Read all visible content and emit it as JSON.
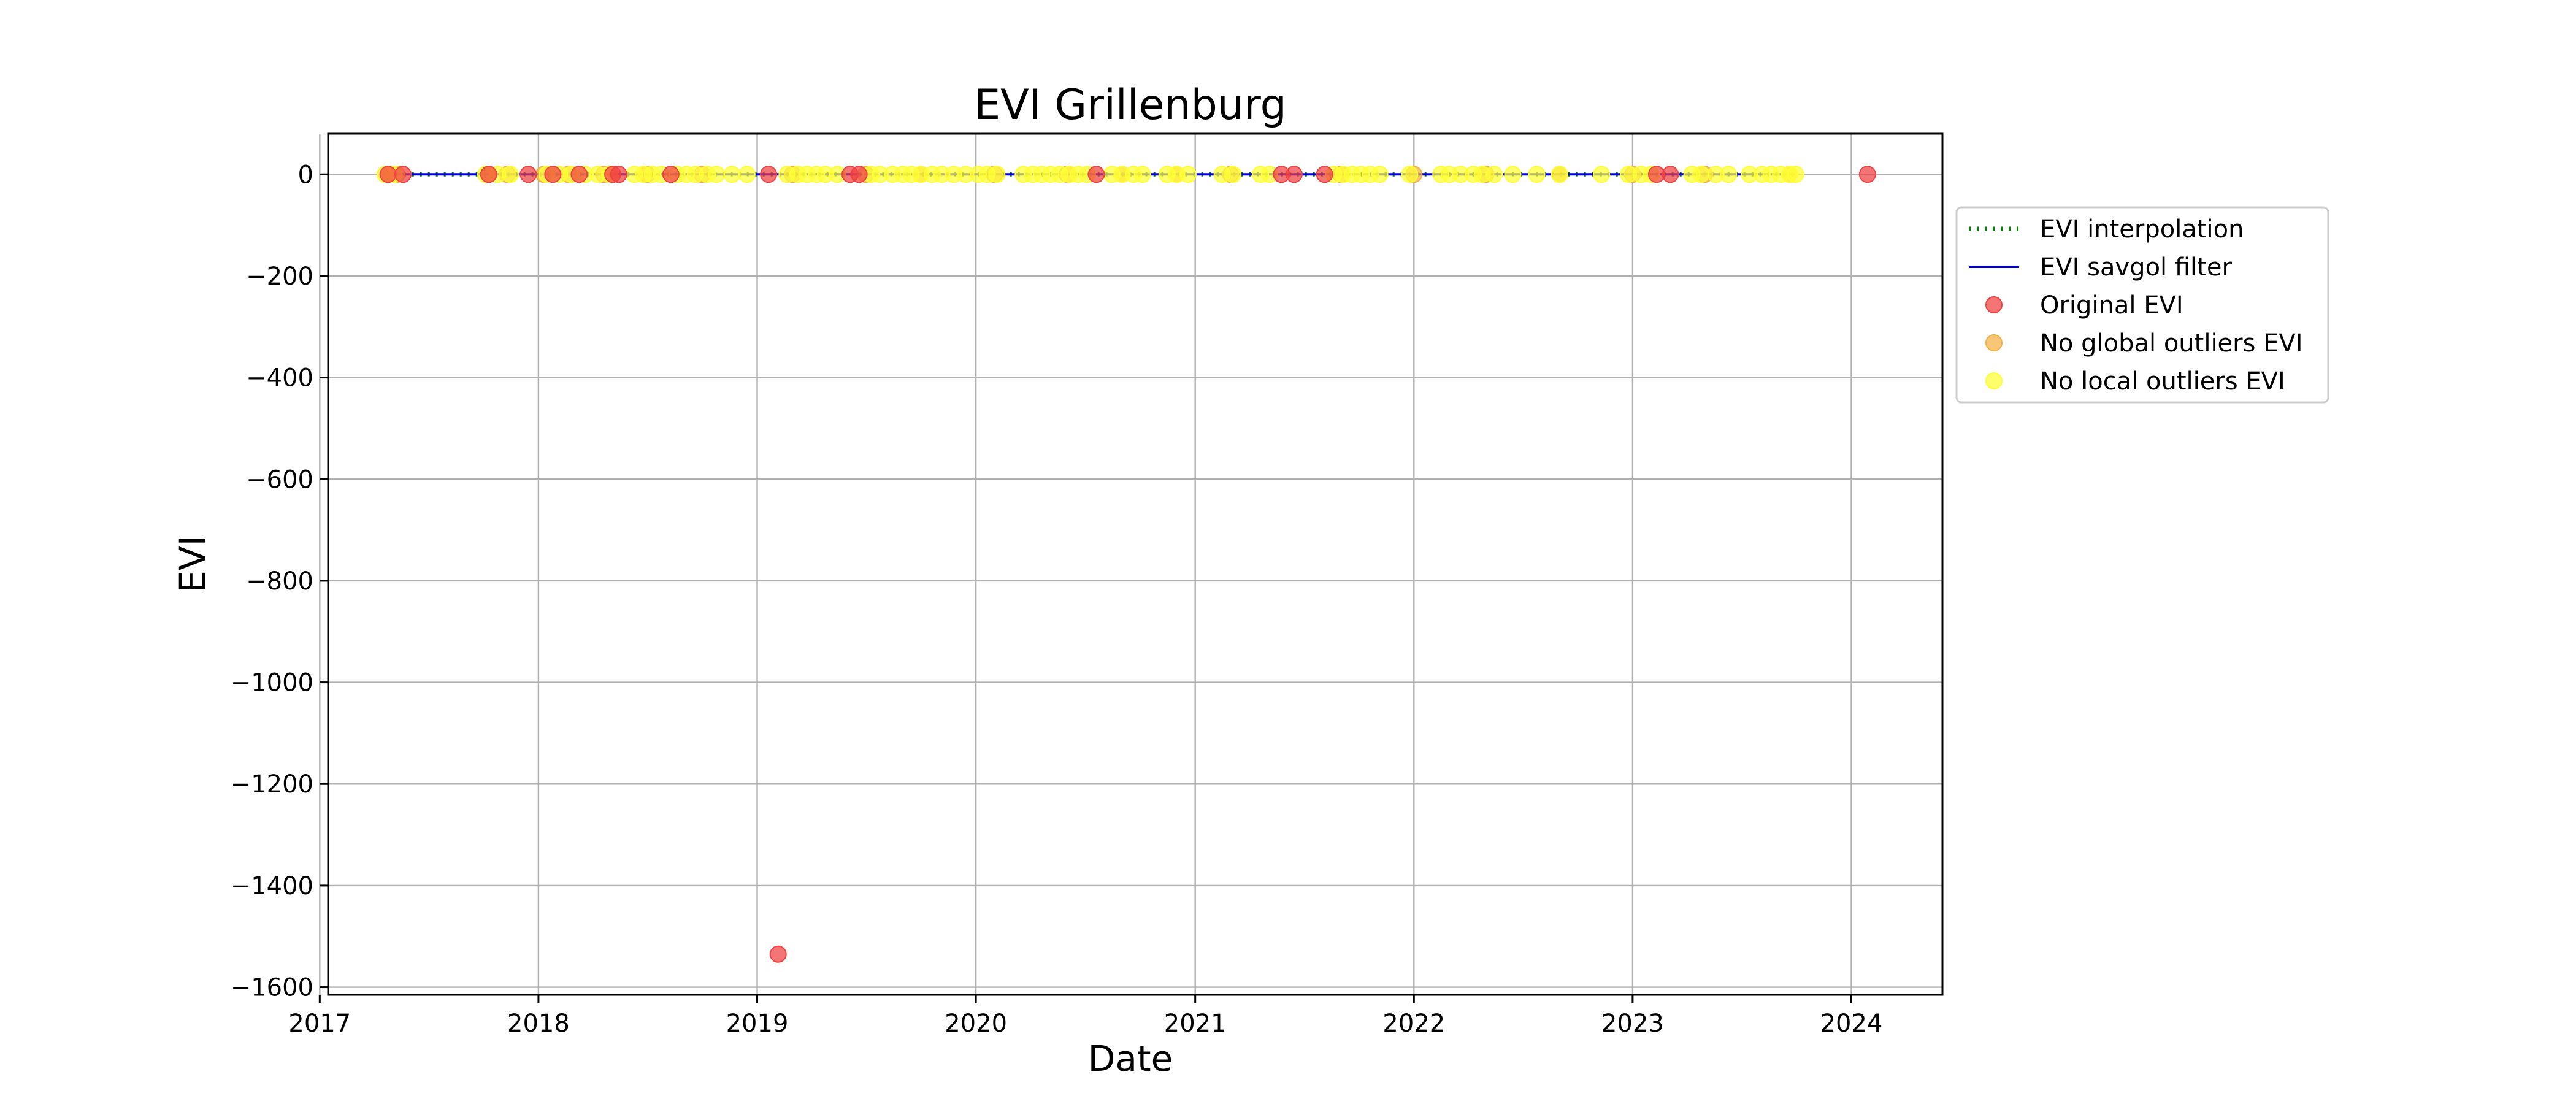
{
  "chart_data": {
    "type": "scatter",
    "title": "EVI Grillenburg",
    "xlabel": "Date",
    "ylabel": "EVI",
    "xlim": [
      "2017-01-15",
      "2024-06-01"
    ],
    "ylim": [
      -1615,
      80
    ],
    "x_ticks": [
      "2017",
      "2018",
      "2019",
      "2020",
      "2021",
      "2022",
      "2023",
      "2024"
    ],
    "y_ticks": [
      0,
      -200,
      -400,
      -600,
      -800,
      -1000,
      -1200,
      -1400,
      -1600
    ],
    "y_tick_labels": [
      "0",
      "−200",
      "−400",
      "−600",
      "−800",
      "−1000",
      "−1200",
      "−1400",
      "−1600"
    ],
    "grid": true,
    "legend_position": "outside-right",
    "series": [
      {
        "name": "EVI interpolation",
        "kind": "line",
        "style": "dotted",
        "color": "#008000",
        "x": [
          "2017-04-25",
          "2023-09-28"
        ],
        "y": [
          0,
          0
        ]
      },
      {
        "name": "EVI savgol filter",
        "kind": "line",
        "style": "solid",
        "color": "#0000cc",
        "x": [
          "2017-04-25",
          "2023-09-28"
        ],
        "y": [
          0,
          0
        ]
      },
      {
        "name": "Original EVI",
        "kind": "scatter",
        "color": "#f04040",
        "x": [
          "2017-04-25",
          "2017-05-20",
          "2017-10-10",
          "2017-12-15",
          "2018-01-25",
          "2018-03-10",
          "2018-05-05",
          "2018-05-15",
          "2018-08-10",
          "2019-01-20",
          "2019-02-05",
          "2019-06-05",
          "2019-06-20",
          "2020-07-20",
          "2021-05-25",
          "2021-06-15",
          "2021-08-05",
          "2023-02-10",
          "2023-03-05",
          "2024-01-28"
        ],
        "y": [
          0,
          0,
          0,
          0,
          0,
          0,
          0,
          0,
          0,
          0,
          -1535,
          0,
          0,
          0,
          0,
          0,
          0,
          0,
          0,
          0
        ]
      },
      {
        "name": "No global outliers EVI",
        "kind": "scatter",
        "color": "#f5b042",
        "x": [
          "2017-04-25",
          "2017-05-10",
          "2017-10-10",
          "2017-11-10",
          "2018-01-10",
          "2018-02-20",
          "2018-04-20",
          "2018-07-01",
          "2018-10-01",
          "2019-03-01",
          "2019-07-01",
          "2019-10-01",
          "2020-02-01",
          "2020-06-01",
          "2020-09-01",
          "2020-12-01",
          "2021-03-01",
          "2021-09-01",
          "2022-01-01",
          "2022-05-01",
          "2022-09-01",
          "2023-01-01",
          "2023-05-01",
          "2023-09-20"
        ],
        "y": [
          0,
          0,
          0,
          0,
          0,
          0,
          0,
          0,
          0,
          0,
          0,
          0,
          0,
          0,
          0,
          0,
          0,
          0,
          0,
          0,
          0,
          0,
          0,
          0
        ]
      },
      {
        "name": "No local outliers EVI",
        "kind": "scatter",
        "color": "#ffff33",
        "x": [
          "2017-04-20",
          "2017-05-05",
          "2017-10-05",
          "2017-10-25",
          "2017-11-15",
          "2018-01-15",
          "2018-02-05",
          "2018-02-25",
          "2018-03-20",
          "2018-04-10",
          "2018-04-30",
          "2018-06-10",
          "2018-06-25",
          "2018-07-10",
          "2018-07-25",
          "2018-08-20",
          "2018-09-05",
          "2018-09-20",
          "2018-10-10",
          "2018-10-25",
          "2018-11-20",
          "2018-12-15",
          "2019-02-20",
          "2019-03-10",
          "2019-03-25",
          "2019-04-10",
          "2019-04-25",
          "2019-05-15",
          "2019-07-10",
          "2019-07-25",
          "2019-08-15",
          "2019-09-01",
          "2019-09-15",
          "2019-10-01",
          "2019-10-20",
          "2019-11-05",
          "2019-11-25",
          "2019-12-15",
          "2020-01-05",
          "2020-01-20",
          "2020-02-05",
          "2020-03-20",
          "2020-04-05",
          "2020-04-20",
          "2020-05-05",
          "2020-05-20",
          "2020-06-05",
          "2020-06-20",
          "2020-07-05",
          "2020-08-15",
          "2020-09-01",
          "2020-09-20",
          "2020-10-05",
          "2020-11-15",
          "2020-12-01",
          "2020-12-20",
          "2021-02-15",
          "2021-03-05",
          "2021-04-20",
          "2021-05-05",
          "2021-08-20",
          "2021-09-05",
          "2021-09-20",
          "2021-10-05",
          "2021-10-20",
          "2021-11-05",
          "2021-12-25",
          "2022-02-15",
          "2022-03-01",
          "2022-03-20",
          "2022-04-10",
          "2022-04-25",
          "2022-05-15",
          "2022-06-15",
          "2022-07-25",
          "2022-09-01",
          "2022-11-10",
          "2022-12-25",
          "2023-01-15",
          "2023-02-01",
          "2023-04-10",
          "2023-04-25",
          "2023-05-20",
          "2023-06-10",
          "2023-07-15",
          "2023-08-05",
          "2023-08-20",
          "2023-09-05",
          "2023-09-20",
          "2023-09-30"
        ],
        "y": [
          0,
          0,
          0,
          0,
          0,
          0,
          0,
          0,
          0,
          0,
          0,
          0,
          0,
          0,
          0,
          0,
          0,
          0,
          0,
          0,
          0,
          0,
          0,
          0,
          0,
          0,
          0,
          0,
          0,
          0,
          0,
          0,
          0,
          0,
          0,
          0,
          0,
          0,
          0,
          0,
          0,
          0,
          0,
          0,
          0,
          0,
          0,
          0,
          0,
          0,
          0,
          0,
          0,
          0,
          0,
          0,
          0,
          0,
          0,
          0,
          0,
          0,
          0,
          0,
          0,
          0,
          0,
          0,
          0,
          0,
          0,
          0,
          0,
          0,
          0,
          0,
          0,
          0,
          0,
          0,
          0,
          0,
          0,
          0,
          0,
          0,
          0,
          0,
          0,
          0
        ]
      }
    ]
  }
}
